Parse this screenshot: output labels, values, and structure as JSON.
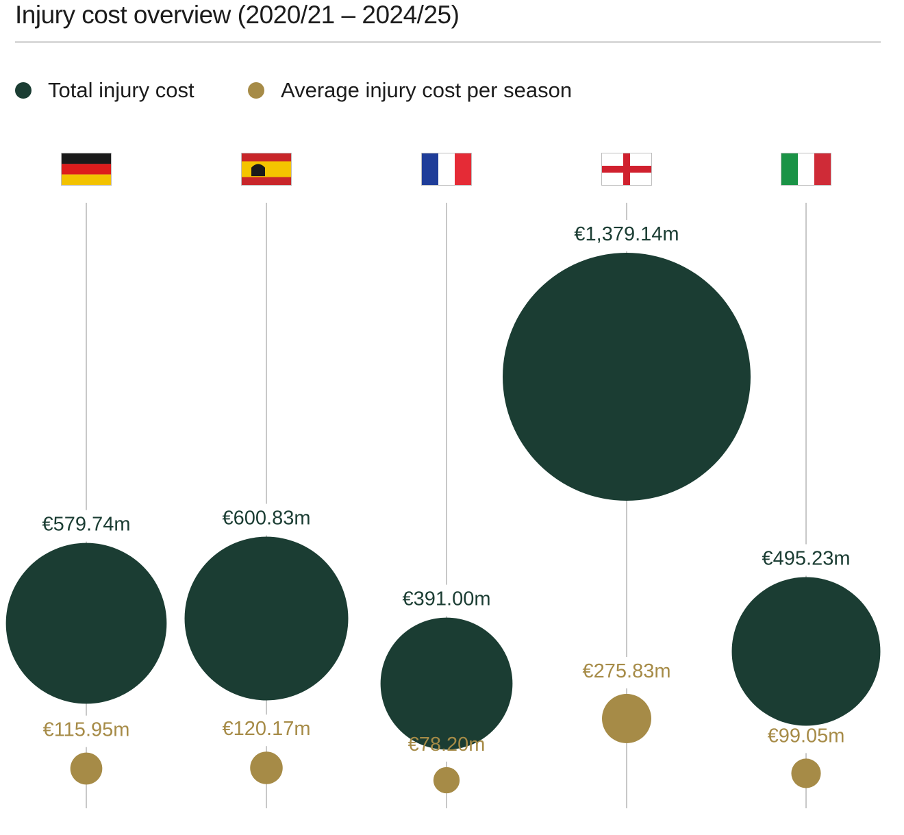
{
  "title": "Injury cost overview (2020/21 – 2024/25)",
  "legend": [
    {
      "label": "Total injury cost",
      "color": "#1b3d33"
    },
    {
      "label": "Average injury cost per season",
      "color": "#a68b47"
    }
  ],
  "colors": {
    "total": "#1b3d33",
    "average": "#a68b47",
    "stem": "#c8c8c8"
  },
  "chart_data": {
    "type": "bubble",
    "title": "Injury cost overview (2020/21 – 2024/25)",
    "unit": "€m",
    "categories": [
      "Germany",
      "Spain",
      "France",
      "England",
      "Italy"
    ],
    "flag_icons": [
      "germany-flag-icon",
      "spain-flag-icon",
      "france-flag-icon",
      "england-flag-icon",
      "italy-flag-icon"
    ],
    "series": [
      {
        "name": "Total injury cost",
        "values": [
          579.74,
          600.83,
          391.0,
          1379.14,
          495.23
        ],
        "labels": [
          "€579.74m",
          "€600.83m",
          "€391.00m",
          "€1,379.14m",
          "€495.23m"
        ]
      },
      {
        "name": "Average injury cost per season",
        "values": [
          115.95,
          120.17,
          78.2,
          275.83,
          99.05
        ],
        "labels": [
          "€115.95m",
          "€120.17m",
          "€78.20m",
          "€275.83m",
          "€99.05m"
        ]
      }
    ]
  }
}
